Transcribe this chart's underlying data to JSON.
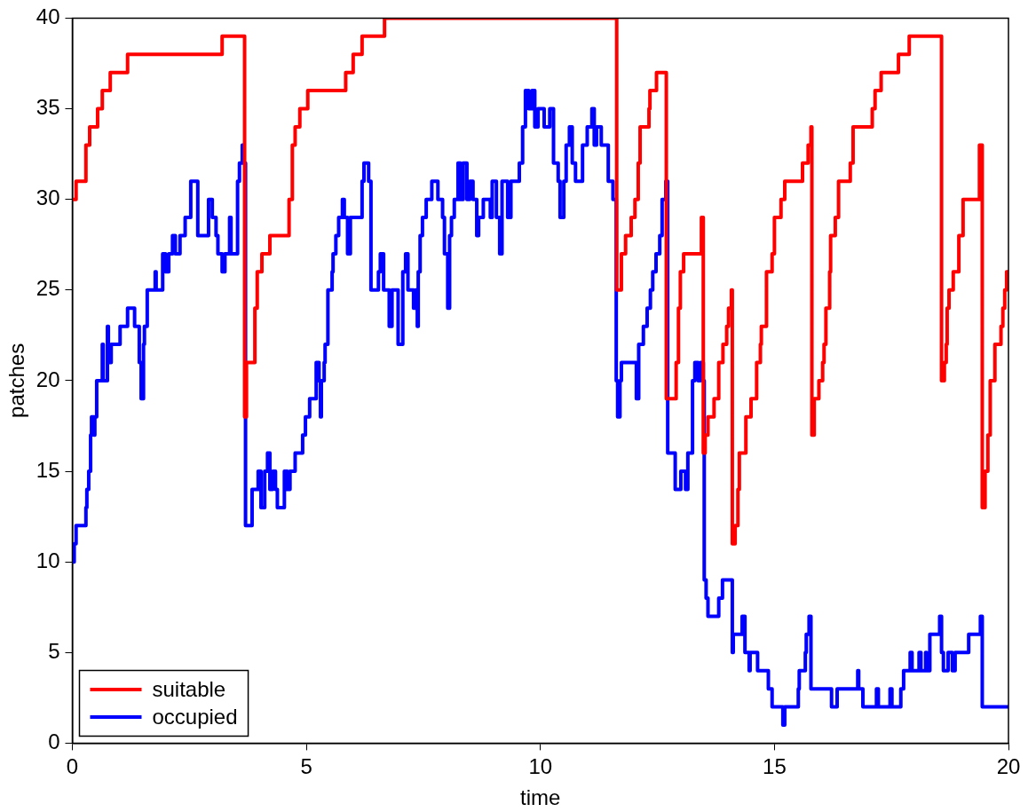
{
  "chart_data": {
    "type": "step",
    "xlabel": "time",
    "ylabel": "patches",
    "xlim": [
      0,
      20
    ],
    "xticks": [
      0,
      5,
      10,
      15,
      20
    ],
    "ylim": [
      0,
      40
    ],
    "yticks": [
      0,
      5,
      10,
      15,
      20,
      25,
      30,
      35,
      40
    ],
    "grid": false,
    "legend": "bottom left",
    "marker": "none",
    "line_style": "solid",
    "series": [
      {
        "name": "suitable",
        "color": "#ff0000",
        "x": [
          0,
          0.08,
          0.29,
          0.37,
          0.54,
          0.64,
          0.81,
          1.18,
          3.2,
          3.68,
          3.72,
          3.9,
          3.95,
          4.05,
          4.22,
          4.63,
          4.7,
          4.76,
          4.86,
          5.03,
          5.84,
          6.0,
          6.19,
          6.67,
          11.63,
          11.73,
          11.82,
          11.94,
          12.02,
          12.09,
          12.13,
          12.32,
          12.34,
          12.48,
          12.69,
          12.9,
          12.95,
          12.99,
          13.06,
          13.44,
          13.48,
          13.52,
          13.58,
          13.71,
          13.81,
          13.9,
          13.98,
          14.02,
          14.08,
          14.1,
          14.16,
          14.22,
          14.25,
          14.39,
          14.5,
          14.62,
          14.7,
          14.72,
          14.83,
          14.95,
          15.0,
          15.14,
          15.22,
          15.6,
          15.72,
          15.78,
          15.8,
          15.85,
          15.95,
          16.03,
          16.06,
          16.1,
          16.18,
          16.2,
          16.3,
          16.37,
          16.62,
          16.68,
          17.09,
          17.15,
          17.28,
          17.65,
          17.88,
          18.57,
          18.63,
          18.67,
          18.69,
          18.73,
          18.82,
          18.94,
          19.03,
          19.38,
          19.44,
          19.5,
          19.56,
          19.61,
          19.71,
          19.84,
          19.88,
          19.92,
          19.96,
          20
        ],
        "values": [
          30,
          31,
          33,
          34,
          35,
          36,
          37,
          38,
          39,
          18,
          21,
          24,
          26,
          27,
          28,
          30,
          33,
          34,
          35,
          36,
          37,
          38,
          39,
          40,
          25,
          27,
          28,
          29,
          30,
          32,
          34,
          35,
          36,
          37,
          19,
          21,
          24,
          26,
          27,
          29,
          16,
          17,
          18,
          19,
          21,
          22,
          23,
          24,
          25,
          11,
          12,
          14,
          16,
          18,
          19,
          21,
          22,
          23,
          26,
          27,
          29,
          30,
          31,
          32,
          33,
          34,
          17,
          19,
          20,
          21,
          22,
          24,
          26,
          28,
          29,
          31,
          32,
          34,
          35,
          36,
          37,
          38,
          39,
          20,
          21,
          22,
          24,
          25,
          26,
          28,
          30,
          33,
          13,
          15,
          17,
          20,
          22,
          23,
          24,
          25,
          26,
          26
        ]
      },
      {
        "name": "occupied",
        "color": "#0000ff",
        "x": [
          0,
          0.04,
          0.08,
          0.29,
          0.31,
          0.35,
          0.39,
          0.41,
          0.46,
          0.48,
          0.52,
          0.64,
          0.66,
          0.75,
          0.77,
          0.83,
          1.02,
          1.18,
          1.33,
          1.43,
          1.47,
          1.52,
          1.54,
          1.6,
          1.77,
          1.79,
          1.93,
          1.99,
          2.06,
          2.14,
          2.2,
          2.3,
          2.41,
          2.53,
          2.68,
          2.91,
          2.99,
          3.07,
          3.11,
          3.2,
          3.26,
          3.36,
          3.39,
          3.53,
          3.57,
          3.63,
          3.66,
          3.7,
          3.84,
          3.97,
          4.03,
          4.11,
          4.17,
          4.22,
          4.28,
          4.34,
          4.38,
          4.53,
          4.59,
          4.65,
          4.76,
          4.92,
          4.98,
          5.07,
          5.21,
          5.27,
          5.3,
          5.32,
          5.38,
          5.4,
          5.46,
          5.55,
          5.57,
          5.63,
          5.69,
          5.77,
          5.81,
          5.88,
          5.94,
          6.19,
          6.23,
          6.33,
          6.38,
          6.54,
          6.58,
          6.65,
          6.77,
          6.83,
          6.96,
          7.06,
          7.12,
          7.17,
          7.29,
          7.33,
          7.37,
          7.39,
          7.43,
          7.48,
          7.56,
          7.68,
          7.81,
          7.91,
          7.95,
          8.02,
          8.06,
          8.1,
          8.16,
          8.24,
          8.29,
          8.35,
          8.43,
          8.49,
          8.56,
          8.64,
          8.68,
          8.78,
          8.93,
          8.97,
          9.06,
          9.13,
          9.18,
          9.3,
          9.37,
          9.55,
          9.62,
          9.68,
          9.75,
          9.82,
          9.88,
          9.95,
          10.08,
          10.2,
          10.28,
          10.38,
          10.42,
          10.5,
          10.55,
          10.62,
          10.68,
          10.75,
          10.9,
          11.0,
          11.1,
          11.15,
          11.2,
          11.3,
          11.45,
          11.55,
          11.62,
          11.65,
          11.7,
          11.73,
          12.05,
          12.1,
          12.2,
          12.28,
          12.35,
          12.4,
          12.47,
          12.55,
          12.6,
          12.68,
          12.72,
          12.88,
          13.0,
          13.1,
          13.15,
          13.25,
          13.3,
          13.37,
          13.42,
          13.48,
          13.5,
          13.54,
          13.58,
          13.81,
          13.89,
          14.1,
          14.12,
          14.31,
          14.37,
          14.46,
          14.48,
          14.64,
          14.87,
          14.95,
          15.18,
          15.22,
          15.51,
          15.53,
          15.66,
          15.68,
          15.74,
          15.78,
          16.22,
          16.34,
          16.78,
          16.8,
          16.89,
          17.18,
          17.22,
          17.47,
          17.51,
          17.7,
          17.76,
          17.9,
          17.94,
          18.09,
          18.13,
          18.23,
          18.25,
          18.32,
          18.53,
          18.57,
          18.61,
          18.71,
          18.8,
          18.86,
          19.15,
          19.4,
          19.44,
          20
        ],
        "values": [
          10,
          11,
          12,
          13,
          14,
          15,
          17,
          18,
          17,
          18,
          20,
          22,
          20,
          23,
          21,
          22,
          23,
          24,
          23,
          21,
          19,
          22,
          23,
          25,
          26,
          25,
          27,
          26,
          27,
          28,
          27,
          28,
          29,
          31,
          28,
          30,
          29,
          28,
          27,
          26,
          27,
          29,
          27,
          31,
          32,
          33,
          32,
          12,
          14,
          15,
          13,
          15,
          16,
          14,
          15,
          14,
          13,
          15,
          14,
          15,
          16,
          17,
          18,
          19,
          21,
          20,
          18,
          20,
          21,
          22,
          25,
          26,
          27,
          28,
          29,
          30,
          29,
          27,
          29,
          31,
          32,
          31,
          25,
          26,
          27,
          25,
          23,
          25,
          22,
          26,
          27,
          25,
          24,
          25,
          23,
          26,
          28,
          29,
          30,
          31,
          30,
          29,
          27,
          24,
          28,
          29,
          30,
          32,
          30,
          32,
          30,
          31,
          30,
          28,
          29,
          30,
          29,
          31,
          29,
          27,
          31,
          29,
          31,
          32,
          34,
          36,
          35,
          36,
          34,
          35,
          34,
          35,
          32,
          31,
          29,
          31,
          33,
          34,
          32,
          31,
          33,
          34,
          35,
          33,
          34,
          33,
          31,
          30,
          20,
          18,
          20,
          21,
          19,
          22,
          23,
          24,
          25,
          26,
          27,
          28,
          30,
          31,
          16,
          14,
          15,
          14,
          16,
          20,
          21,
          20,
          21,
          20,
          9,
          8,
          7,
          8,
          9,
          5,
          6,
          7,
          5,
          4,
          5,
          4,
          3,
          2,
          1,
          2,
          3,
          4,
          5,
          6,
          7,
          3,
          2,
          3,
          4,
          3,
          2,
          3,
          2,
          3,
          2,
          3,
          4,
          5,
          4,
          5,
          4,
          5,
          4,
          6,
          7,
          5,
          4,
          5,
          4,
          5,
          6,
          7,
          2,
          2
        ]
      }
    ]
  }
}
